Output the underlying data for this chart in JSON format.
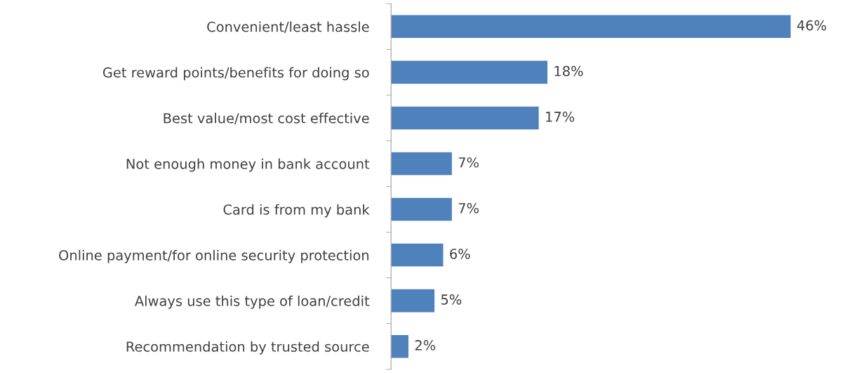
{
  "chart_data": {
    "type": "bar",
    "orientation": "horizontal",
    "categories": [
      "Convenient/least hassle",
      "Get reward points/benefits for doing so",
      "Best value/most cost effective",
      "Not enough money in bank account",
      "Card is from my bank",
      "Online payment/for online security protection",
      "Always use this type of loan/credit",
      "Recommendation by trusted source"
    ],
    "values": [
      46,
      18,
      17,
      7,
      7,
      6,
      5,
      2
    ],
    "value_labels": [
      "46%",
      "18%",
      "17%",
      "7%",
      "7%",
      "6%",
      "5%",
      "2%"
    ],
    "color": "#4f81bd",
    "tick_labels": "y"
  }
}
